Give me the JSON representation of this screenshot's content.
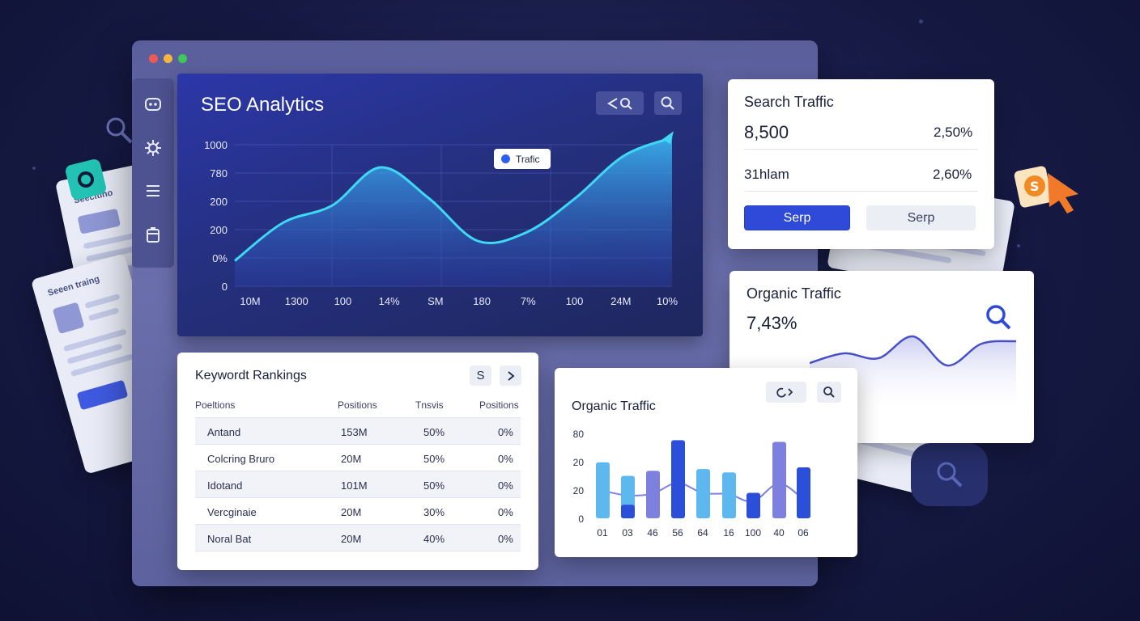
{
  "colors": {
    "background": "#161a44",
    "accent_blue": "#2f49d8",
    "line_cyan": "#3fd8f5",
    "bar_light": "#5cb8ee",
    "bar_dark": "#2b4fd8",
    "bar_purple": "#7e80e0"
  },
  "deco_papers": [
    {
      "title": "Seecitino"
    },
    {
      "title": "Seeen traing"
    }
  ],
  "sidebar": {
    "items": [
      {
        "icon": "robot-icon"
      },
      {
        "icon": "gear-icon"
      },
      {
        "icon": "list-icon"
      },
      {
        "icon": "clipboard-icon"
      }
    ]
  },
  "main_chart": {
    "title": "SEO Analytics",
    "toolbar": {
      "share_icon": "share-search-icon",
      "search_icon": "search-icon"
    },
    "legend_label": "Trafic"
  },
  "chart_data": [
    {
      "type": "area",
      "title": "SEO Analytics",
      "legend": [
        "Trafic"
      ],
      "y_ticks": [
        "1000",
        "780",
        "200",
        "200",
        "0%",
        "0"
      ],
      "x_ticks": [
        "10M",
        "1300",
        "100",
        "14%",
        "SM",
        "180",
        "7%",
        "100",
        "24M",
        "10%"
      ],
      "series": [
        {
          "name": "Trafic",
          "values": [
            0.18,
            0.45,
            0.57,
            0.84,
            0.62,
            0.32,
            0.38,
            0.62,
            0.92,
            1.05
          ]
        }
      ],
      "grid": true
    },
    {
      "type": "bar",
      "title": "Organic Traffic",
      "categories": [
        "01",
        "03",
        "46",
        "56",
        "64",
        "16",
        "100",
        "40",
        "06"
      ],
      "y_ticks": [
        "80",
        "20",
        "20",
        "0"
      ],
      "series": [
        {
          "name": "",
          "values": [
            66,
            50,
            56,
            92,
            58,
            54,
            30,
            90,
            37
          ]
        },
        {
          "name": "",
          "values": [
            0,
            16,
            0,
            0,
            0,
            0,
            0,
            0,
            60
          ]
        }
      ],
      "grid": false
    },
    {
      "type": "line",
      "title": "Organic Traffic",
      "series": [
        {
          "name": "",
          "values": [
            0.35,
            0.55,
            0.45,
            0.9,
            0.3,
            0.75,
            0.8
          ]
        }
      ]
    }
  ],
  "search_traffic": {
    "title": "Search Traffic",
    "value": "8,500",
    "value_pct": "2,50%",
    "sub_label": "31hlam",
    "sub_pct": "2,60%",
    "btn_primary": "Serp",
    "btn_secondary": "Serp"
  },
  "organic_top": {
    "title": "Organic Traffic",
    "value": "7,43%",
    "icon": "search-icon"
  },
  "keywords": {
    "title": "Keywordt Rankings",
    "btn_s": "S",
    "headers": [
      "Poeltions",
      "Positions",
      "Tnsvis",
      "Positions"
    ],
    "rows": [
      [
        "Antand",
        "153M",
        "50%",
        "0%"
      ],
      [
        "Colcring Bruro",
        "20M",
        "50%",
        "0%"
      ],
      [
        "Idotand",
        "101M",
        "50%",
        "0%"
      ],
      [
        "Vercginaie",
        "20M",
        "30%",
        "0%"
      ],
      [
        "Noral Bat",
        "20M",
        "40%",
        "0%"
      ]
    ]
  },
  "organic_bars": {
    "title": "Organic Traffic"
  }
}
